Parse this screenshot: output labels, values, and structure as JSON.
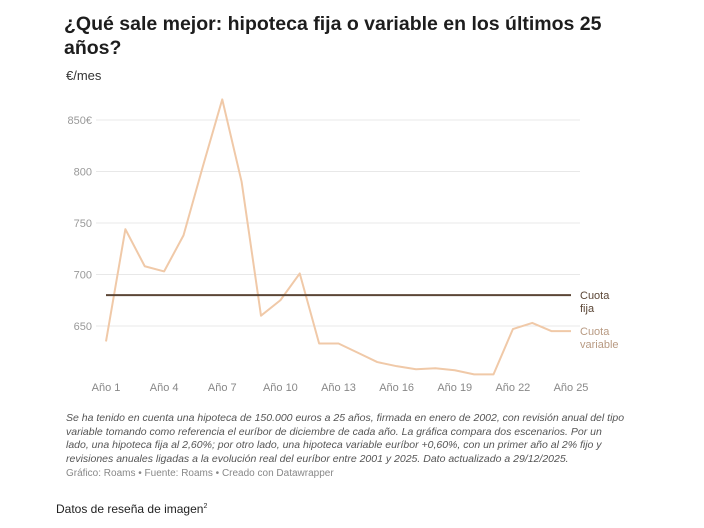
{
  "title": "¿Qué sale mejor: hipoteca fija o variable en los últimos 25 años?",
  "unit_label": "€/mes",
  "chart_data": {
    "type": "line",
    "title": "¿Qué sale mejor: hipoteca fija o variable en los últimos 25 años?",
    "ylabel": "€/mes",
    "ylim": [
      600,
      870
    ],
    "yticks": [
      650,
      700,
      750,
      800,
      850
    ],
    "ytick_labels": [
      "650",
      "700",
      "750",
      "800",
      "850€"
    ],
    "grid": true,
    "x": [
      1,
      2,
      3,
      4,
      5,
      6,
      7,
      8,
      9,
      10,
      11,
      12,
      13,
      14,
      15,
      16,
      17,
      18,
      19,
      20,
      21,
      22,
      23,
      24,
      25
    ],
    "xticks": [
      1,
      4,
      7,
      10,
      13,
      16,
      19,
      22,
      25
    ],
    "xtick_labels": [
      "Año 1",
      "Año 4",
      "Año 7",
      "Año 10",
      "Año 13",
      "Año 16",
      "Año 19",
      "Año 22",
      "Año 25"
    ],
    "series": [
      {
        "name": "Cuota fija",
        "color": "#5b4636",
        "values": [
          680,
          680,
          680,
          680,
          680,
          680,
          680,
          680,
          680,
          680,
          680,
          680,
          680,
          680,
          680,
          680,
          680,
          680,
          680,
          680,
          680,
          680,
          680,
          680,
          680
        ]
      },
      {
        "name": "Cuota variable",
        "color": "#f0c9a8",
        "values": [
          635,
          744,
          708,
          703,
          738,
          805,
          870,
          790,
          660,
          675,
          701,
          633,
          633,
          624,
          615,
          611,
          608,
          609,
          607,
          603,
          603,
          647,
          653,
          645,
          645
        ]
      }
    ],
    "legend": "right-inline"
  },
  "legend_labels": {
    "fixed": "Cuota fija",
    "variable": "Cuota variable"
  },
  "note": "Se ha tenido en cuenta una hipoteca de 150.000 euros a 25 años, firmada en enero de 2002, con revisión anual del tipo variable tomando como referencia el euríbor de diciembre de cada año. La gráfica compara dos escenarios. Por un lado, una hipoteca fija al 2,60%; por otro lado, una hipoteca variable euríbor +0,60%, con un primer año al 2% fijo y revisiones anuales ligadas a la evolución real del euríbor entre 2001 y 2025. Dato actualizado a 29/12/2025.",
  "credit": "Gráfico: Roams • Fuente: Roams • Creado con Datawrapper",
  "review": {
    "label": "Datos de reseña de imagen",
    "sup": "2"
  }
}
